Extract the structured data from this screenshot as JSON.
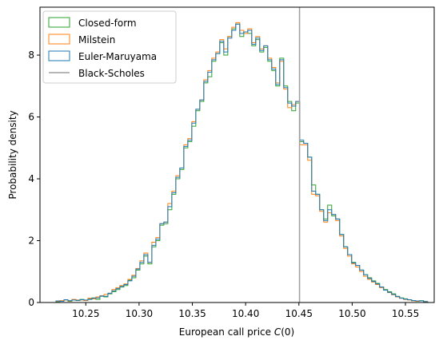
{
  "chart_data": {
    "type": "histogram",
    "xlabel": "European call price $C(0)$",
    "xlabel_parts": [
      "European call price ",
      "C",
      "(0)"
    ],
    "ylabel": "Probability density",
    "xlim": [
      10.207,
      10.577
    ],
    "ylim": [
      0,
      9.55
    ],
    "xticks": [
      10.25,
      10.3,
      10.35,
      10.4,
      10.45,
      10.5,
      10.55
    ],
    "xtick_labels": [
      "10.25",
      "10.30",
      "10.35",
      "10.40",
      "10.45",
      "10.50",
      "10.55"
    ],
    "yticks": [
      0,
      2,
      4,
      6,
      8
    ],
    "ytick_labels": [
      "0",
      "2",
      "4",
      "6",
      "8"
    ],
    "grid": false,
    "legend_position": "upper-left",
    "legend": [
      "Closed-form",
      "Milstein",
      "Euler-Maruyama",
      "Black-Scholes"
    ],
    "bin_start": 10.222,
    "bin_width": 0.00375,
    "series": [
      {
        "name": "Closed-form",
        "color": "#2ca02c",
        "style": "step",
        "values": [
          0.03,
          0.05,
          0.08,
          0.04,
          0.09,
          0.06,
          0.1,
          0.07,
          0.12,
          0.15,
          0.1,
          0.2,
          0.18,
          0.28,
          0.35,
          0.42,
          0.5,
          0.55,
          0.72,
          0.8,
          1.05,
          1.25,
          1.5,
          1.25,
          1.8,
          2.0,
          2.5,
          2.55,
          3.0,
          3.5,
          4.0,
          4.3,
          5.0,
          5.2,
          5.7,
          6.2,
          6.5,
          7.1,
          7.3,
          7.8,
          8.05,
          8.4,
          8.0,
          8.6,
          8.85,
          9.0,
          8.6,
          8.75,
          8.7,
          8.3,
          8.5,
          8.1,
          8.25,
          7.8,
          7.5,
          7.0,
          7.9,
          7.0,
          6.5,
          6.2,
          6.45,
          5.2,
          5.15,
          4.7,
          3.8,
          3.5,
          3.0,
          2.7,
          3.15,
          2.8,
          2.7,
          2.2,
          1.8,
          1.55,
          1.3,
          1.2,
          1.05,
          0.9,
          0.8,
          0.7,
          0.62,
          0.5,
          0.42,
          0.35,
          0.28,
          0.2,
          0.15,
          0.12,
          0.09,
          0.06,
          0.05,
          0.06,
          0.03
        ]
      },
      {
        "name": "Milstein",
        "color": "#ff7f0e",
        "style": "step",
        "values": [
          0.04,
          0.06,
          0.08,
          0.05,
          0.1,
          0.08,
          0.08,
          0.06,
          0.14,
          0.12,
          0.18,
          0.22,
          0.26,
          0.3,
          0.42,
          0.48,
          0.55,
          0.6,
          0.75,
          0.88,
          1.1,
          1.35,
          1.6,
          1.3,
          1.95,
          2.1,
          2.55,
          2.6,
          3.2,
          3.6,
          4.1,
          4.35,
          5.1,
          5.3,
          5.85,
          6.25,
          6.55,
          7.2,
          7.5,
          7.9,
          8.1,
          8.5,
          8.2,
          8.6,
          8.9,
          9.05,
          8.8,
          8.7,
          8.85,
          8.4,
          8.6,
          8.2,
          8.3,
          7.9,
          7.6,
          7.1,
          7.8,
          6.9,
          6.3,
          6.4,
          6.5,
          5.1,
          5.1,
          4.6,
          3.5,
          3.45,
          2.95,
          2.6,
          2.9,
          2.85,
          2.65,
          2.15,
          1.75,
          1.5,
          1.25,
          1.15,
          1.0,
          0.85,
          0.75,
          0.66,
          0.58,
          0.48,
          0.4,
          0.32,
          0.25,
          0.18,
          0.14,
          0.1,
          0.08,
          0.05,
          0.04,
          0.05,
          0.03
        ]
      },
      {
        "name": "Euler-Maruyama",
        "color": "#1f77b4",
        "style": "step",
        "values": [
          0.05,
          0.04,
          0.09,
          0.06,
          0.08,
          0.07,
          0.09,
          0.08,
          0.1,
          0.14,
          0.15,
          0.21,
          0.2,
          0.3,
          0.38,
          0.45,
          0.52,
          0.58,
          0.7,
          0.85,
          1.08,
          1.3,
          1.55,
          1.3,
          1.85,
          2.05,
          2.55,
          2.6,
          3.1,
          3.55,
          4.05,
          4.35,
          5.05,
          5.25,
          5.8,
          6.25,
          6.55,
          7.15,
          7.45,
          7.85,
          8.05,
          8.45,
          8.1,
          8.55,
          8.8,
          9.0,
          8.7,
          8.75,
          8.8,
          8.35,
          8.55,
          8.15,
          8.3,
          7.85,
          7.55,
          7.05,
          7.85,
          6.95,
          6.45,
          6.35,
          6.5,
          5.25,
          5.15,
          4.7,
          3.6,
          3.5,
          3.0,
          2.65,
          3.0,
          2.85,
          2.7,
          2.2,
          1.8,
          1.55,
          1.28,
          1.2,
          1.05,
          0.9,
          0.78,
          0.68,
          0.6,
          0.5,
          0.4,
          0.33,
          0.26,
          0.19,
          0.14,
          0.11,
          0.09,
          0.06,
          0.05,
          0.05,
          0.03
        ]
      },
      {
        "name": "Black-Scholes",
        "color": "#9e9e9e",
        "style": "vline",
        "x": 10.4506
      }
    ]
  }
}
